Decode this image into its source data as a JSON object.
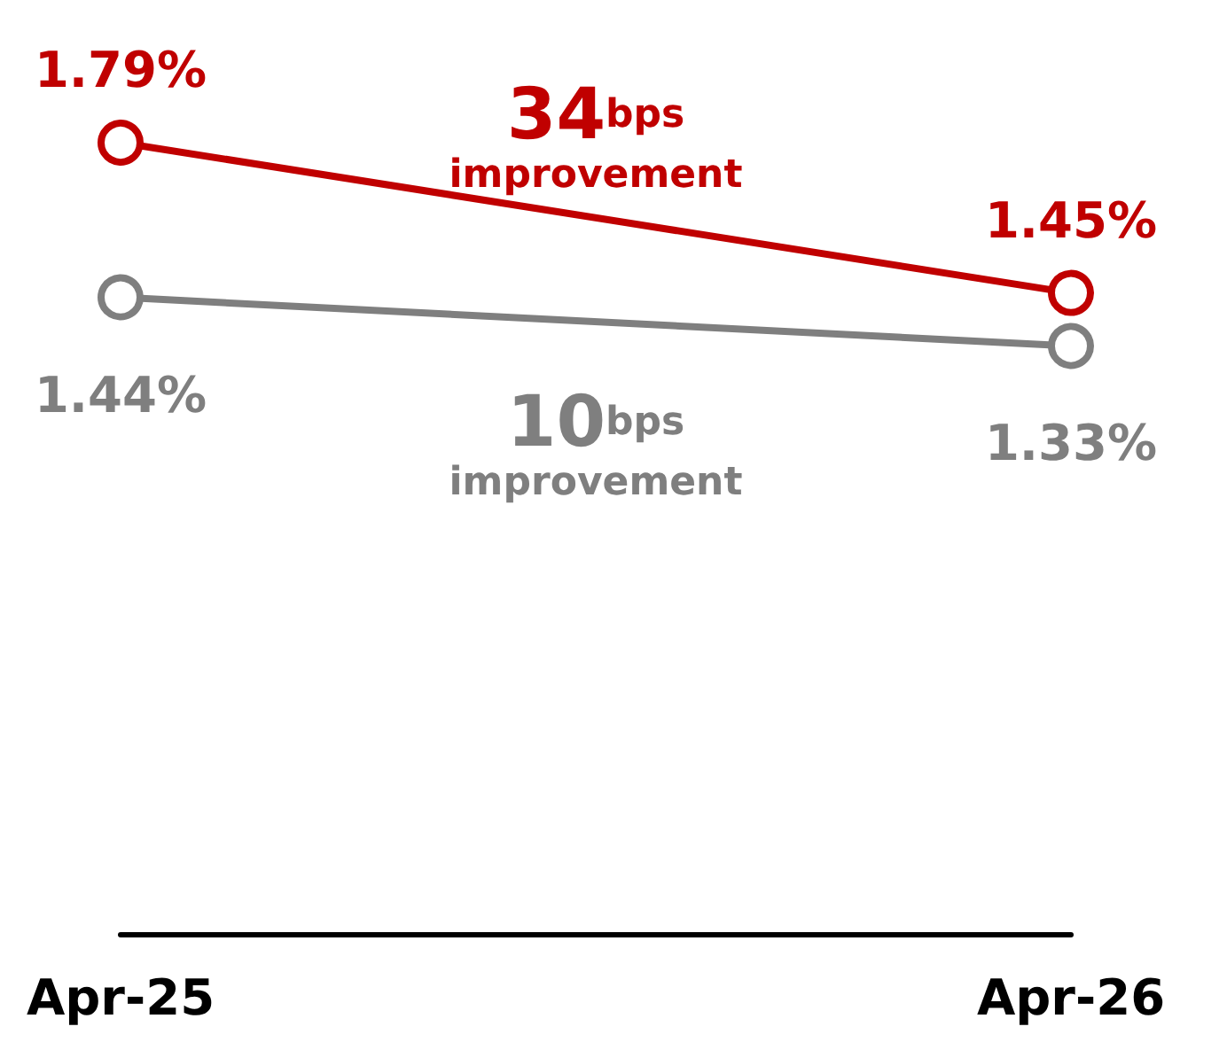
{
  "chart_data": {
    "type": "line",
    "categories": [
      "Apr-25",
      "Apr-26"
    ],
    "marker": "circle",
    "grid": false,
    "series": [
      {
        "color": "#c00000",
        "values": [
          1.79,
          1.45
        ],
        "value_labels": [
          "1.79%",
          "1.45%"
        ]
      },
      {
        "color": "#7f7f7f",
        "values": [
          1.44,
          1.33
        ],
        "value_labels": [
          "1.44%",
          "1.33%"
        ]
      }
    ],
    "annotations": [
      "34bps improvement",
      "10bps improvement"
    ]
  }
}
